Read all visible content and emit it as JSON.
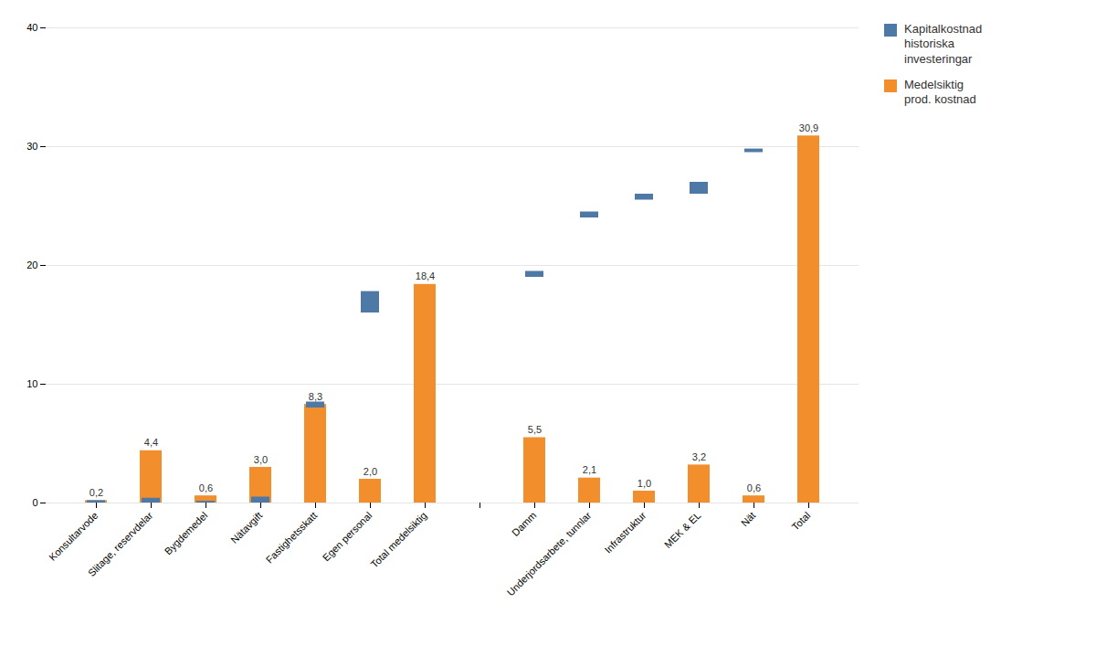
{
  "chart_data": {
    "type": "bar",
    "categories": [
      "Konsultarvode",
      "Slitage, reservdelar",
      "Bygdemedel",
      "Nätavgift",
      "Fastighetsskatt",
      "Egen personal",
      "Total medelsiktig",
      null,
      "Damm",
      "Underjordsarbete, tunnlar",
      "Infrastruktur",
      "MEK & EL",
      "Nät",
      "Total"
    ],
    "series": [
      {
        "name": "Kapitalkostnad\nhistoriska\ninvesteringar",
        "bottoms": [
          0.0,
          0.0,
          0.0,
          0.0,
          8.0,
          16.0,
          0.0,
          null,
          19.0,
          24.0,
          25.5,
          26.0,
          29.5,
          0.0
        ],
        "values": [
          0.2,
          0.4,
          0.15,
          0.5,
          0.5,
          1.8,
          0.0,
          null,
          0.5,
          0.5,
          0.5,
          1.0,
          0.3,
          0.0
        ]
      },
      {
        "name": "Medelsiktig\nprod. kostnad",
        "values": [
          0.2,
          4.4,
          0.6,
          3.0,
          8.3,
          2.0,
          18.4,
          null,
          5.5,
          2.1,
          1.0,
          3.2,
          0.6,
          30.9
        ],
        "value_labels": [
          "0,2",
          "4,4",
          "0,6",
          "3,0",
          "8,3",
          "2,0",
          "18,4",
          null,
          "5,5",
          "2,1",
          "1,0",
          "3,2",
          "0,6",
          "30,9"
        ],
        "data_labels": true
      }
    ],
    "ylim": [
      0,
      40
    ],
    "yticks": [
      0,
      10,
      20,
      30,
      40
    ],
    "grid": true,
    "legend": "right"
  }
}
